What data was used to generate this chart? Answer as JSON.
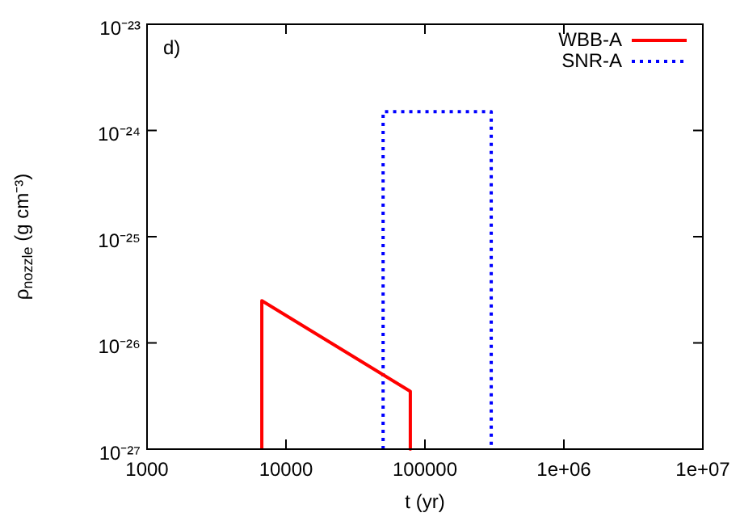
{
  "chart_data": {
    "type": "line",
    "xlabel": "t (yr)",
    "ylabel": "ρ$_{nozzle}$ (g cm⁻³)",
    "annotations": [
      "d)"
    ],
    "log": "xy",
    "grid": false,
    "legend": "top right",
    "marker": "none",
    "xlim": [
      1000,
      10000000
    ],
    "xticks": [
      1000,
      10000,
      100000,
      {
        "value": 1000000,
        "label": "1e+06"
      },
      {
        "value": 10000000,
        "label": "1e+07"
      }
    ],
    "ylim": [
      1e-27,
      1e-23
    ],
    "yticks": [
      {
        "value": 1e-27,
        "label": "10⁻²⁷"
      },
      {
        "value": 1e-26,
        "label": "10⁻²⁶"
      },
      {
        "value": 1e-25,
        "label": "10⁻²⁵"
      },
      {
        "value": 1e-24,
        "label": "10⁻²⁴"
      },
      {
        "value": 1e-23,
        "label": "10⁻²³"
      }
    ],
    "series": [
      {
        "name": "WBB-A",
        "color": "#ff0000",
        "line_style": "solid",
        "x": [
          6700,
          6700,
          78500,
          78500
        ],
        "values": [
          1e-27,
          2.5e-26,
          3.5e-27,
          1e-27
        ]
      },
      {
        "name": "SNR-A",
        "color": "#0000ff",
        "line_style": "dotted",
        "x": [
          50000,
          50000,
          300000,
          300000
        ],
        "values": [
          1e-27,
          1.5e-24,
          1.5e-24,
          1e-27
        ]
      }
    ]
  }
}
